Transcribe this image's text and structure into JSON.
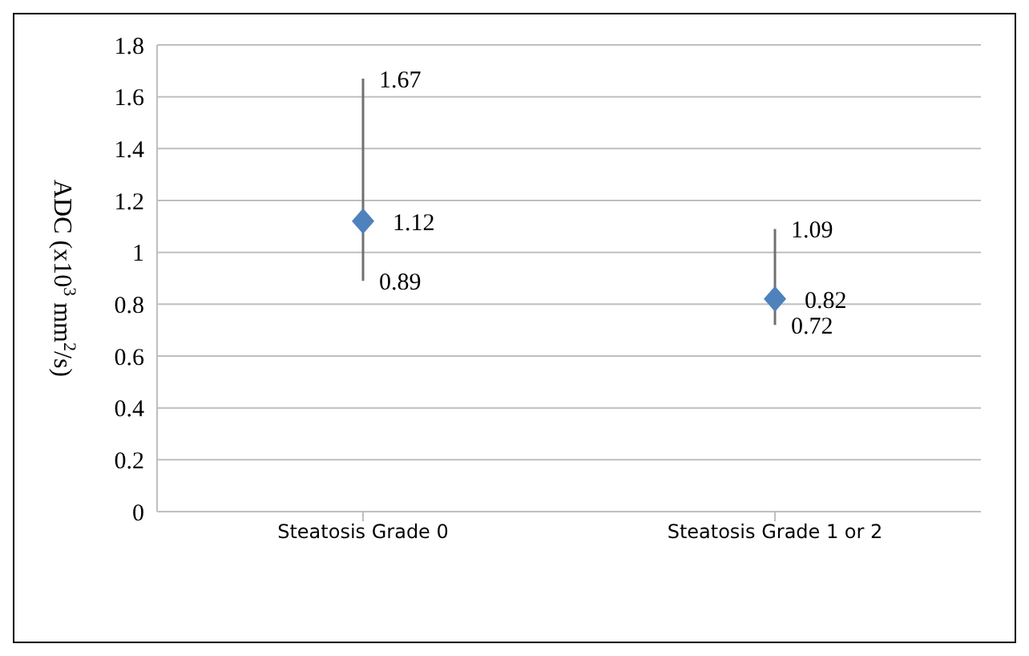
{
  "chart_data": {
    "type": "scatter",
    "ylabel": "ADC (x10$^{3}$ mm$^{2}$/s)",
    "categories": [
      "Steatosis Grade 0",
      "Steatosis Grade 1 or 2"
    ],
    "series": [
      {
        "color": "#4f81bd",
        "values": [
          1.12,
          0.82
        ],
        "errors": [
          [
            0.89,
            1.67
          ],
          [
            0.72,
            1.09
          ]
        ]
      }
    ],
    "marker": "diamond",
    "data_labels": true,
    "annotations": [
      {
        "text": "1.67",
        "x": "Steatosis Grade 0",
        "y": 1.67
      },
      {
        "text": "0.89",
        "x": "Steatosis Grade 0",
        "y": 0.89
      },
      {
        "text": "1.09",
        "x": "Steatosis Grade 1 or 2",
        "y": 1.09
      },
      {
        "text": "0.72",
        "x": "Steatosis Grade 1 or 2",
        "y": 0.72
      }
    ],
    "ylim": [
      0,
      1.8
    ],
    "yticks": [
      0,
      0.2,
      0.4,
      0.6,
      0.8,
      1,
      1.2,
      1.4,
      1.6,
      1.8
    ],
    "grid": "y"
  }
}
